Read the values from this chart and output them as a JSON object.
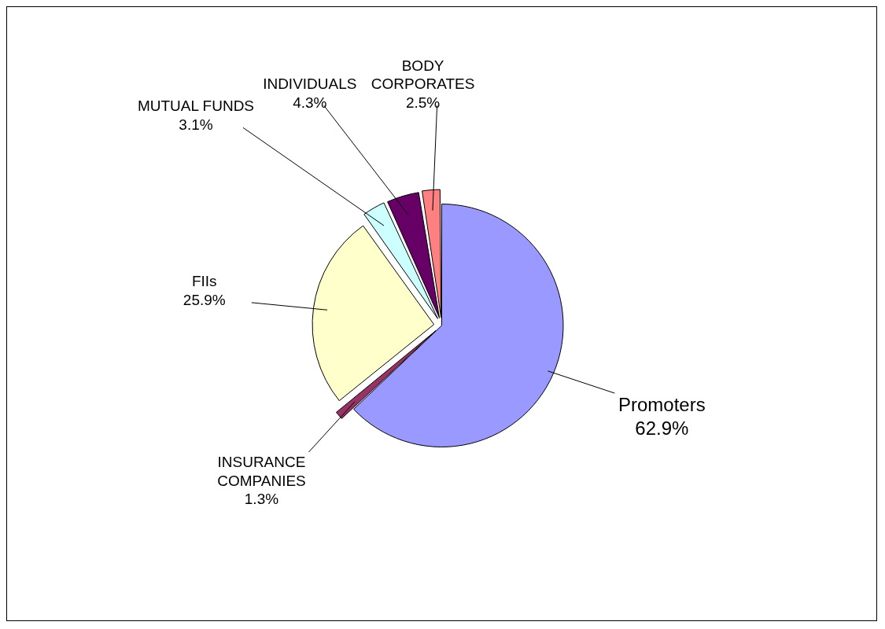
{
  "chart_data": {
    "type": "pie",
    "categories": [
      "Promoters",
      "INSURANCE COMPANIES",
      "FIIs",
      "MUTUAL FUNDS",
      "INDIVIDUALS",
      "BODY CORPORATES"
    ],
    "values": [
      62.9,
      1.3,
      25.9,
      3.1,
      4.3,
      2.5
    ],
    "value_labels": [
      "62.9%",
      "1.3%",
      "25.9%",
      "3.1%",
      "4.3%",
      "2.5%"
    ],
    "colors": [
      "#9999ff",
      "#993366",
      "#ffffcc",
      "#ccffff",
      "#660066",
      "#ff8080"
    ],
    "legend": false
  }
}
